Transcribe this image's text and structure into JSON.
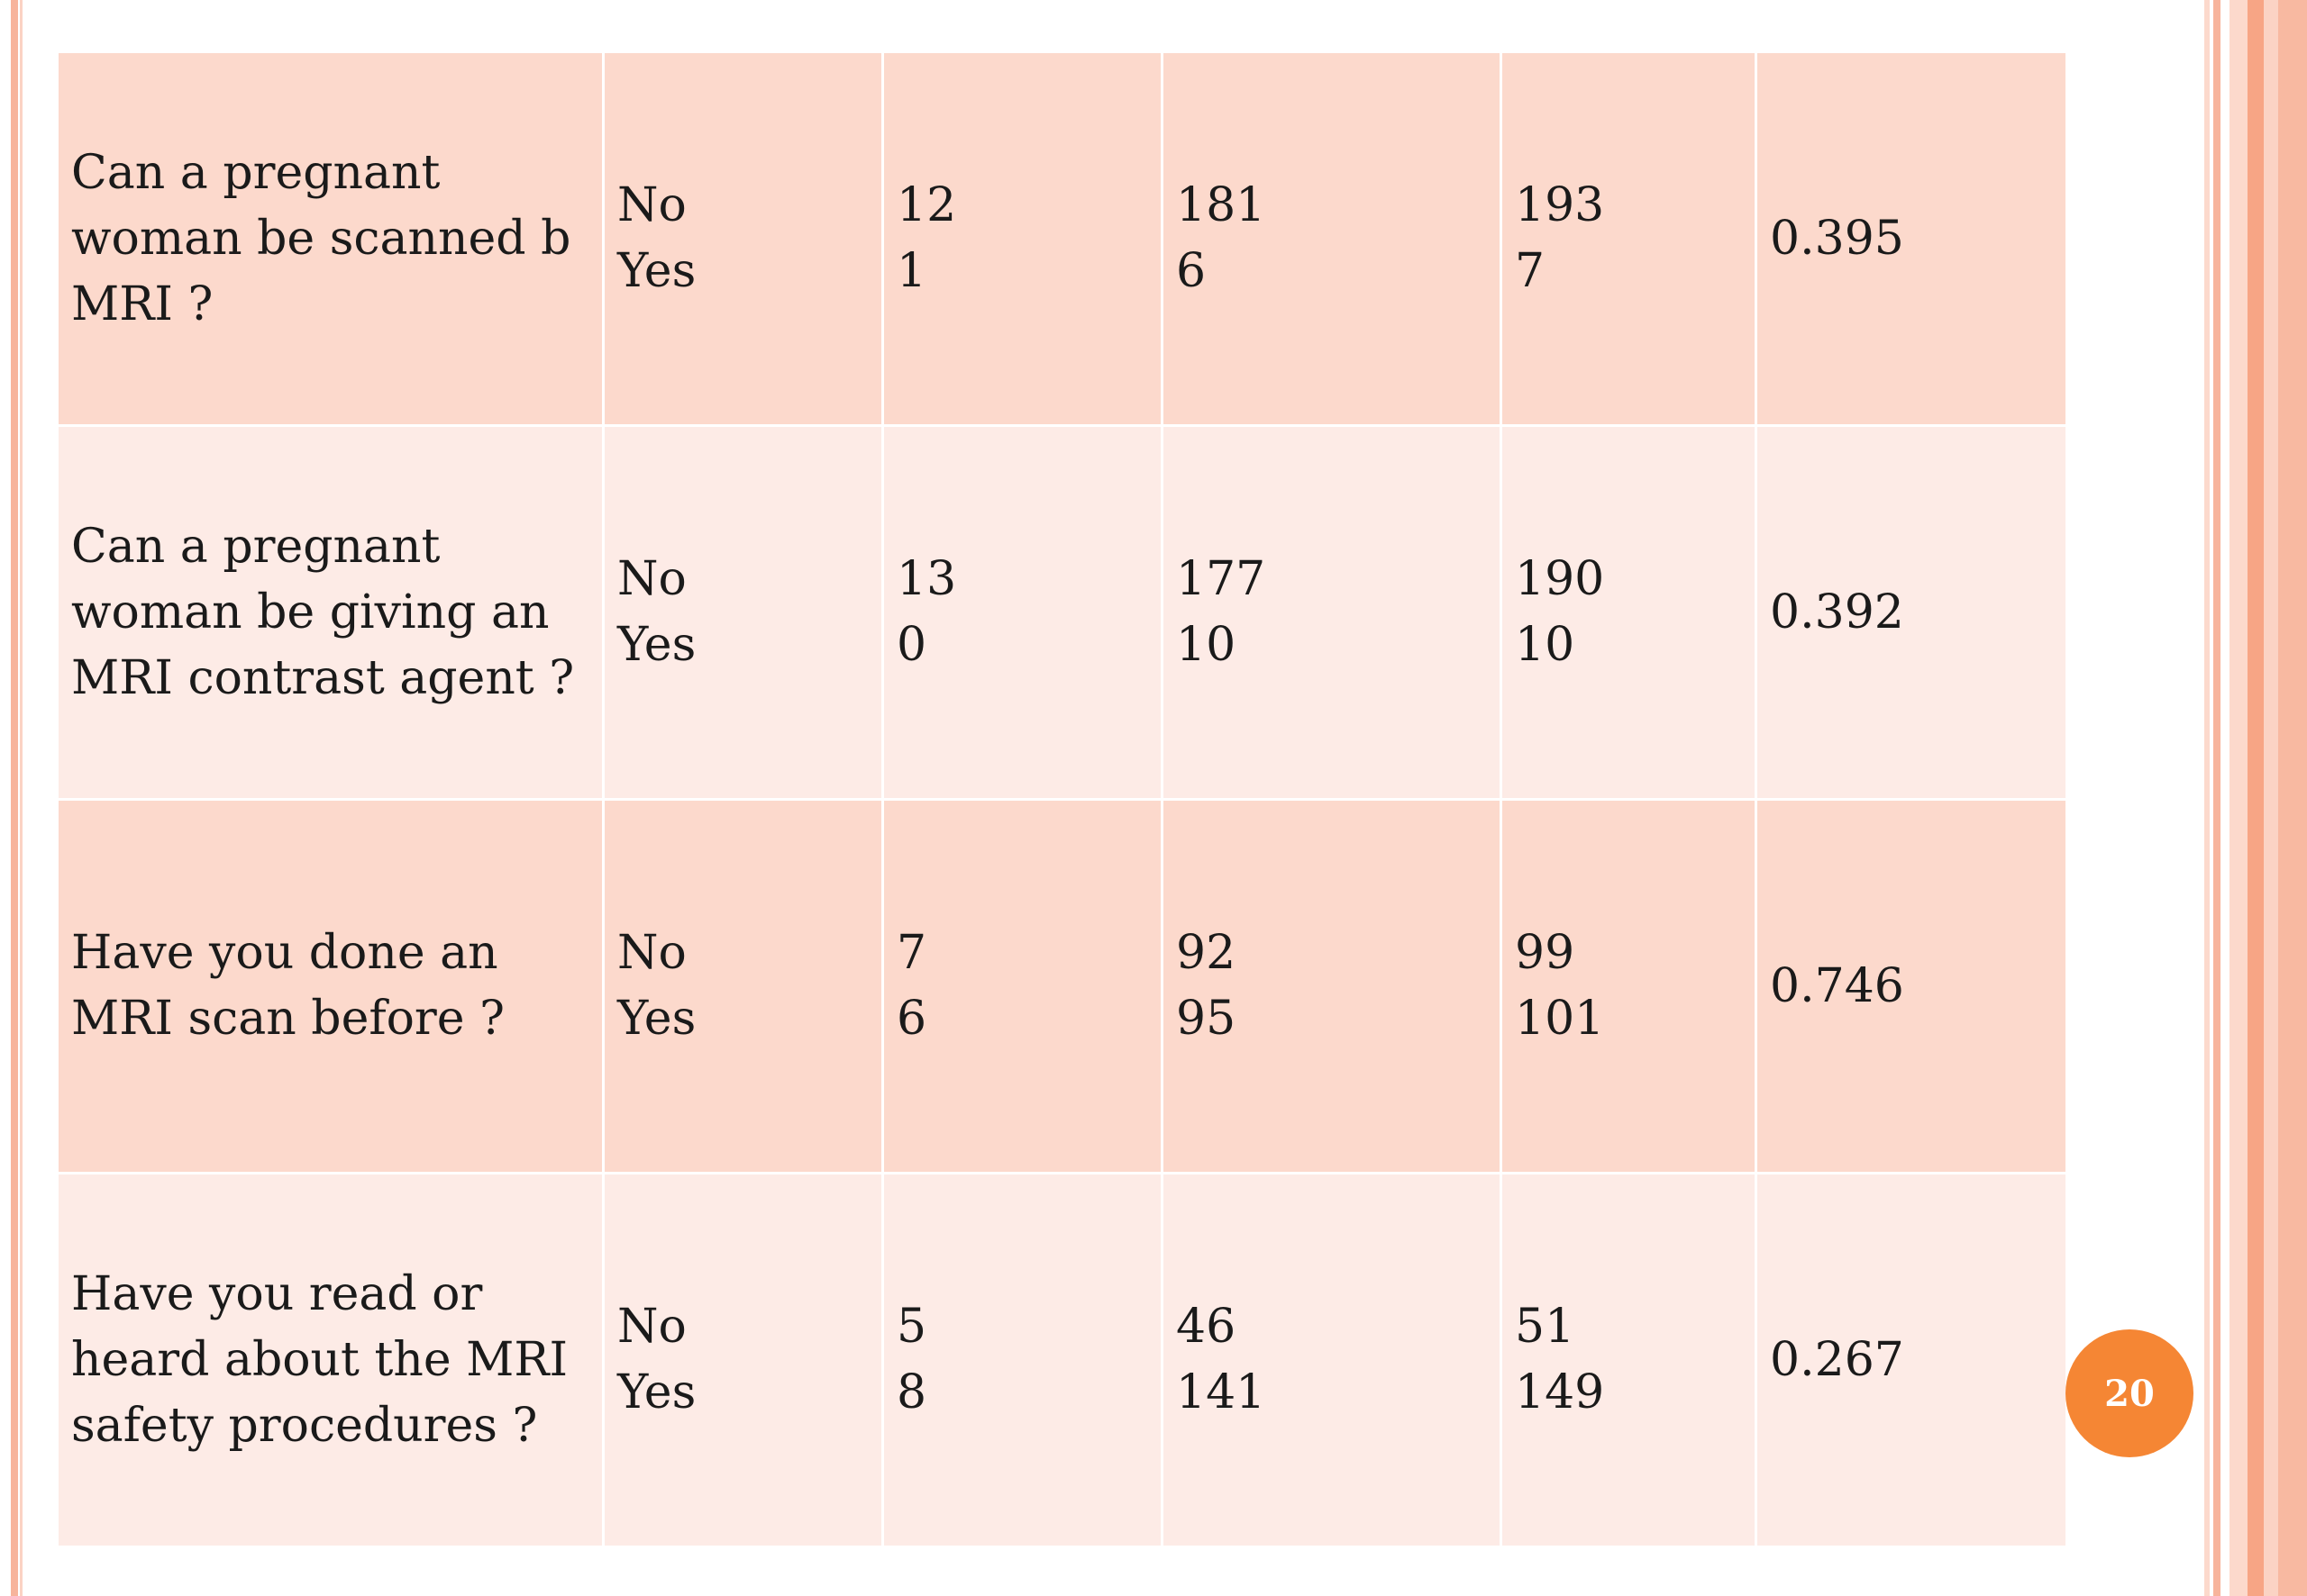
{
  "table": {
    "rows": [
      {
        "question": "Can a pregnant woman be scanned b MRI ?",
        "answer_1": "No",
        "answer_2": "Yes",
        "col3_1": "12",
        "col3_2": "1",
        "col4_1": "181",
        "col4_2": "6",
        "col5_1": "193",
        "col5_2": "7",
        "p_value": "0.395"
      },
      {
        "question": "Can a pregnant woman be giving an MRI contrast agent ?",
        "answer_1": "No",
        "answer_2": "Yes",
        "col3_1": "13",
        "col3_2": "0",
        "col4_1": "177",
        "col4_2": "10",
        "col5_1": "190",
        "col5_2": "10",
        "p_value": "0.392"
      },
      {
        "question": "Have you done an MRI scan before ?",
        "answer_1": "No",
        "answer_2": "Yes",
        "col3_1": "7",
        "col3_2": "6",
        "col4_1": "92",
        "col4_2": "95",
        "col5_1": "99",
        "col5_2": "101",
        "p_value": "0.746"
      },
      {
        "question": "Have you read or heard about the MRI safety procedures ?",
        "answer_1": "No",
        "answer_2": "Yes",
        "col3_1": "5",
        "col3_2": "8",
        "col4_1": "46",
        "col4_2": "141",
        "col5_1": "51",
        "col5_2": "149",
        "p_value": "0.267"
      }
    ]
  },
  "page_number": "20",
  "colors": {
    "row_odd": "#fcd9cc",
    "row_even": "#fdebe6",
    "badge": "#f58634",
    "border_accent": "#f7b49c"
  }
}
